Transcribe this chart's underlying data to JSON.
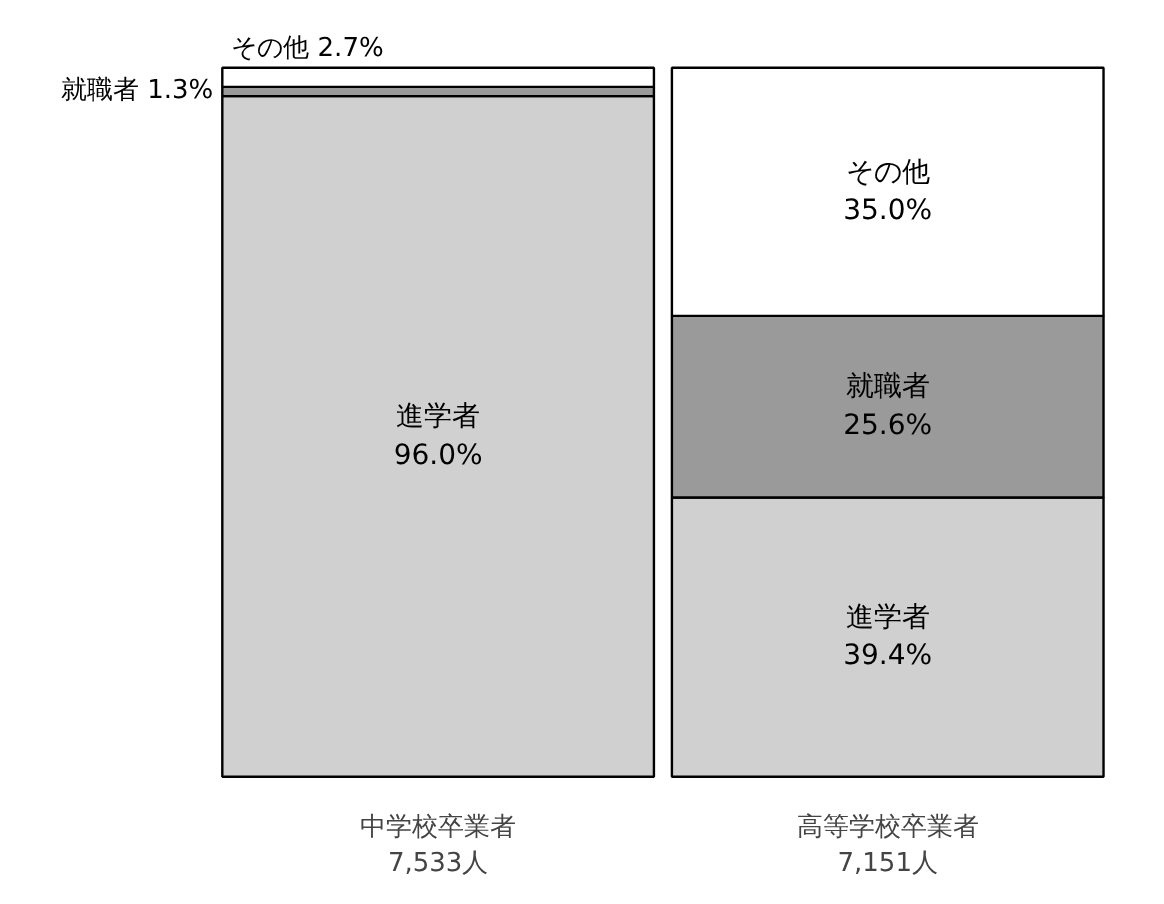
{
  "chart_data": {
    "type": "bar",
    "stacked": true,
    "categories": [
      "中学校卒業者\n7,533人",
      "高等学校卒業者\n7,151人"
    ],
    "series": [
      {
        "name": "進学者",
        "color": "#d0d0d0",
        "values": [
          96.0,
          39.4
        ],
        "value_labels": [
          "96.0%",
          "39.4%"
        ]
      },
      {
        "name": "就職者",
        "color": "#9a9a9a",
        "values": [
          1.3,
          25.6
        ],
        "value_labels": [
          "1.3%",
          "25.6%"
        ]
      },
      {
        "name": "その他",
        "color": "#ffffff",
        "values": [
          2.7,
          35.0
        ],
        "value_labels": [
          "2.7%",
          "35.0%"
        ]
      }
    ],
    "tick_labels": "x",
    "grid": false
  }
}
